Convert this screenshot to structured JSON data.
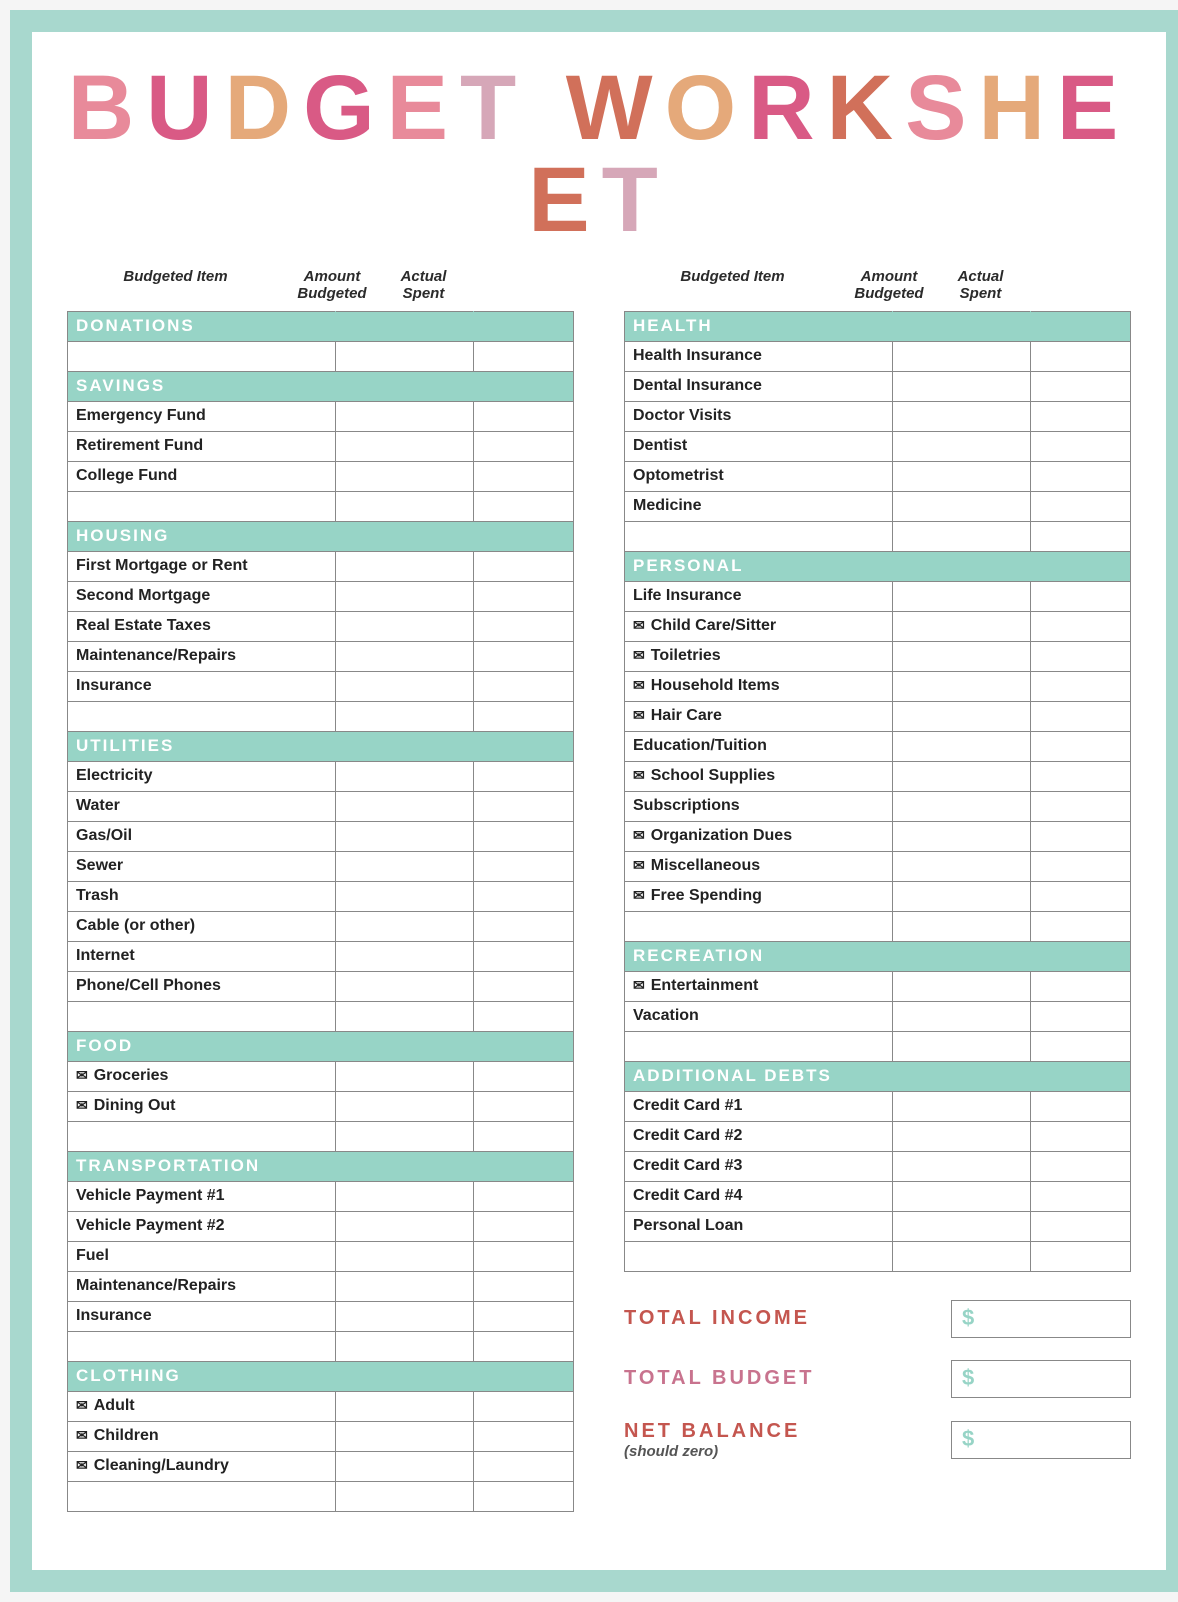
{
  "title": "BUDGET WORKSHEET",
  "title_colors": [
    "#e88a9a",
    "#d95a85",
    "#e5a97a",
    "#d95a85",
    "#e88a9a",
    "#d6a7b8",
    "#d1705a",
    "#e5a97a",
    "#d95a85",
    "#d1705a",
    "#e88a9a",
    "#e5a97a",
    "#d95a85",
    "#d1705a",
    "#d6a7b8"
  ],
  "headers": {
    "item": "Budgeted Item",
    "amount": "Amount Budgeted",
    "actual": "Actual Spent"
  },
  "colors": {
    "section_bg": "#97d4c6",
    "section_text": "#ffffff",
    "border": "#888888",
    "page_bg": "#a8d8ce",
    "inner_bg": "#ffffff",
    "text": "#222222"
  },
  "left_rows": [
    {
      "type": "section",
      "label": "DONATIONS"
    },
    {
      "type": "item",
      "label": ""
    },
    {
      "type": "section",
      "label": "SAVINGS"
    },
    {
      "type": "item",
      "label": "Emergency Fund"
    },
    {
      "type": "item",
      "label": "Retirement Fund"
    },
    {
      "type": "item",
      "label": "College Fund"
    },
    {
      "type": "item",
      "label": ""
    },
    {
      "type": "section",
      "label": "HOUSING"
    },
    {
      "type": "item",
      "label": "First Mortgage or Rent"
    },
    {
      "type": "item",
      "label": "Second Mortgage"
    },
    {
      "type": "item",
      "label": "Real Estate Taxes"
    },
    {
      "type": "item",
      "label": "Maintenance/Repairs"
    },
    {
      "type": "item",
      "label": "Insurance"
    },
    {
      "type": "item",
      "label": ""
    },
    {
      "type": "section",
      "label": "UTILITIES"
    },
    {
      "type": "item",
      "label": "Electricity"
    },
    {
      "type": "item",
      "label": "Water"
    },
    {
      "type": "item",
      "label": "Gas/Oil"
    },
    {
      "type": "item",
      "label": "Sewer"
    },
    {
      "type": "item",
      "label": "Trash"
    },
    {
      "type": "item",
      "label": "Cable (or other)"
    },
    {
      "type": "item",
      "label": "Internet"
    },
    {
      "type": "item",
      "label": "Phone/Cell Phones"
    },
    {
      "type": "item",
      "label": ""
    },
    {
      "type": "section",
      "label": "FOOD"
    },
    {
      "type": "item",
      "label": "Groceries",
      "env": true
    },
    {
      "type": "item",
      "label": "Dining Out",
      "env": true
    },
    {
      "type": "item",
      "label": ""
    },
    {
      "type": "section",
      "label": "TRANSPORTATION"
    },
    {
      "type": "item",
      "label": "Vehicle Payment #1"
    },
    {
      "type": "item",
      "label": "Vehicle Payment #2"
    },
    {
      "type": "item",
      "label": "Fuel"
    },
    {
      "type": "item",
      "label": "Maintenance/Repairs"
    },
    {
      "type": "item",
      "label": "Insurance"
    },
    {
      "type": "item",
      "label": ""
    },
    {
      "type": "section",
      "label": "CLOTHING"
    },
    {
      "type": "item",
      "label": "Adult",
      "env": true
    },
    {
      "type": "item",
      "label": "Children",
      "env": true
    },
    {
      "type": "item",
      "label": "Cleaning/Laundry",
      "env": true
    },
    {
      "type": "item",
      "label": ""
    }
  ],
  "right_rows": [
    {
      "type": "section",
      "label": "HEALTH"
    },
    {
      "type": "item",
      "label": "Health Insurance"
    },
    {
      "type": "item",
      "label": "Dental Insurance"
    },
    {
      "type": "item",
      "label": "Doctor Visits"
    },
    {
      "type": "item",
      "label": "Dentist"
    },
    {
      "type": "item",
      "label": "Optometrist"
    },
    {
      "type": "item",
      "label": "Medicine"
    },
    {
      "type": "item",
      "label": ""
    },
    {
      "type": "section",
      "label": "PERSONAL"
    },
    {
      "type": "item",
      "label": "Life Insurance"
    },
    {
      "type": "item",
      "label": "Child Care/Sitter",
      "env": true
    },
    {
      "type": "item",
      "label": "Toiletries",
      "env": true
    },
    {
      "type": "item",
      "label": "Household Items",
      "env": true
    },
    {
      "type": "item",
      "label": "Hair Care",
      "env": true
    },
    {
      "type": "item",
      "label": "Education/Tuition"
    },
    {
      "type": "item",
      "label": "School Supplies",
      "env": true
    },
    {
      "type": "item",
      "label": "Subscriptions"
    },
    {
      "type": "item",
      "label": "Organization Dues",
      "env": true
    },
    {
      "type": "item",
      "label": "Miscellaneous",
      "env": true
    },
    {
      "type": "item",
      "label": "Free Spending",
      "env": true
    },
    {
      "type": "item",
      "label": ""
    },
    {
      "type": "section",
      "label": "RECREATION"
    },
    {
      "type": "item",
      "label": "Entertainment",
      "env": true
    },
    {
      "type": "item",
      "label": "Vacation"
    },
    {
      "type": "item",
      "label": ""
    },
    {
      "type": "section",
      "label": "ADDITIONAL DEBTS"
    },
    {
      "type": "item",
      "label": "Credit Card #1"
    },
    {
      "type": "item",
      "label": "Credit Card #2"
    },
    {
      "type": "item",
      "label": "Credit Card #3"
    },
    {
      "type": "item",
      "label": "Credit Card #4"
    },
    {
      "type": "item",
      "label": "Personal Loan"
    },
    {
      "type": "item",
      "label": ""
    }
  ],
  "totals": [
    {
      "label": "TOTAL INCOME",
      "sub": "",
      "value": "$",
      "color": "#c4564f"
    },
    {
      "label": "TOTAL BUDGET",
      "sub": "",
      "value": "$",
      "color": "#c8738e"
    },
    {
      "label": "NET BALANCE",
      "sub": "(should zero)",
      "value": "$",
      "color": "#c4564f"
    }
  ]
}
